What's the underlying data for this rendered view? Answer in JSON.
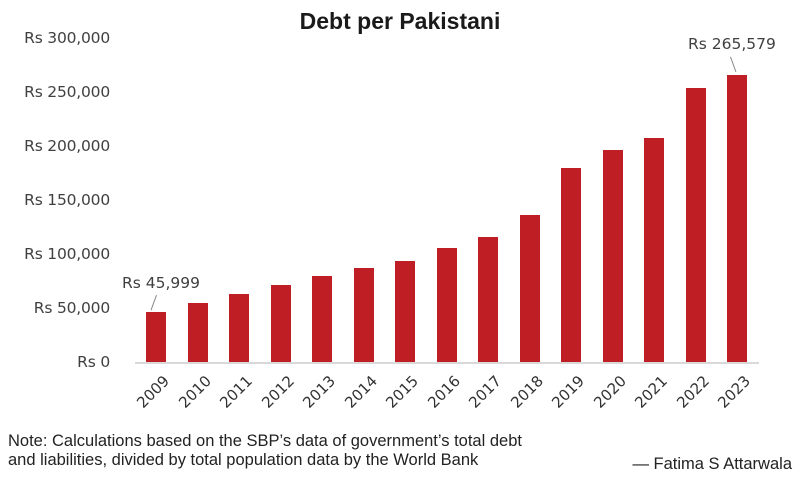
{
  "chart_data": {
    "type": "bar",
    "title": "Debt per Pakistani",
    "xlabel": "",
    "ylabel": "",
    "ylim": [
      0,
      300000
    ],
    "grid": false,
    "legend": null,
    "yticks": [
      "Rs 0",
      "Rs 50,000",
      "Rs 100,000",
      "Rs 150,000",
      "Rs 200,000",
      "Rs 250,000",
      "Rs 300,000"
    ],
    "ytick_values": [
      0,
      50000,
      100000,
      150000,
      200000,
      250000,
      300000
    ],
    "categories": [
      "2009",
      "2010",
      "2011",
      "2012",
      "2013",
      "2014",
      "2015",
      "2016",
      "2017",
      "2018",
      "2019",
      "2020",
      "2021",
      "2022",
      "2023"
    ],
    "values": [
      45999,
      54600,
      62900,
      71200,
      79600,
      87000,
      93400,
      105500,
      115600,
      136000,
      179500,
      196000,
      207000,
      253500,
      265579
    ],
    "bar_color": "#be1e24",
    "annotations": [
      {
        "category": "2009",
        "label": "Rs 45,999"
      },
      {
        "category": "2023",
        "label": "Rs 265,579"
      }
    ]
  },
  "footer": {
    "note_line1": "Note: Calculations based on the SBP’s data of government’s total debt",
    "note_line2": "and liabilities, divided by total population data by the World Bank",
    "credit": "— Fatima S Attarwala"
  }
}
